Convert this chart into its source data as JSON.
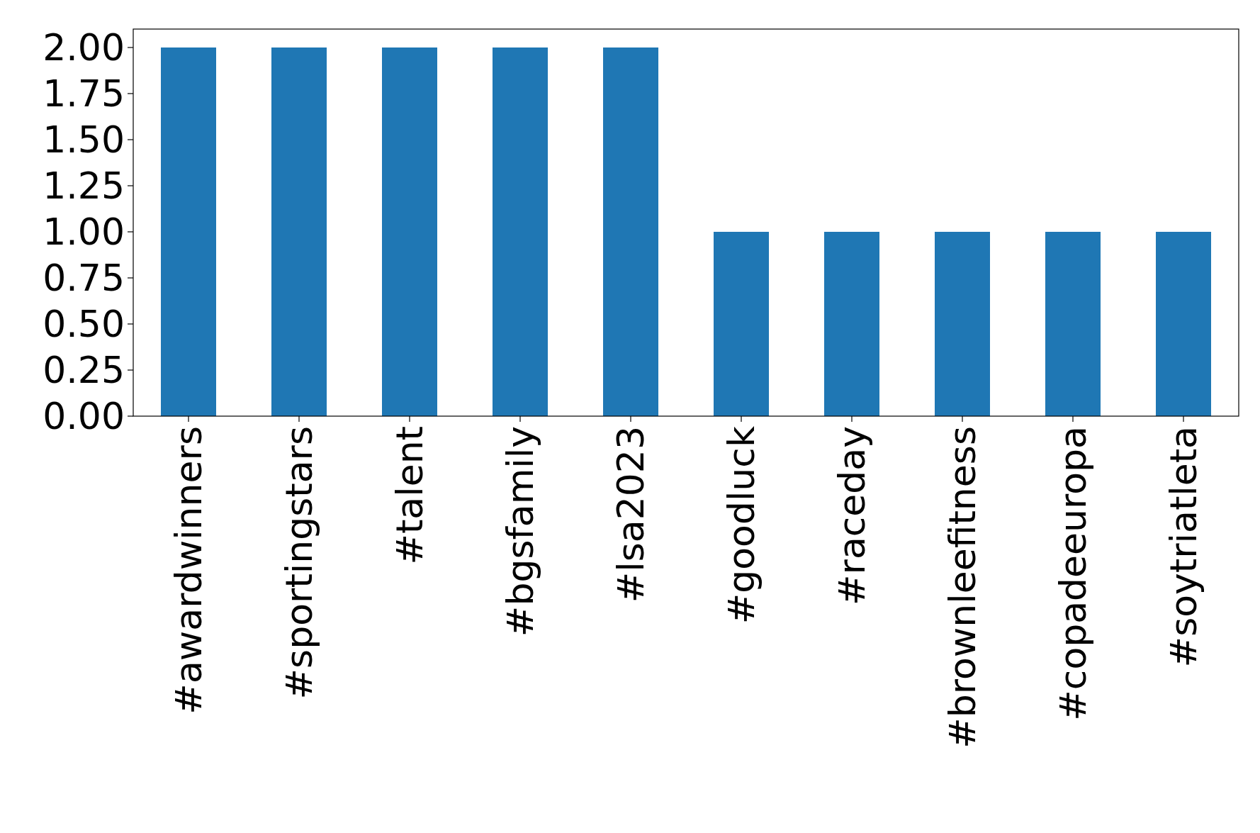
{
  "chart_data": {
    "type": "bar",
    "categories": [
      "#awardwinners",
      "#sportingstars",
      "#talent",
      "#bgsfamily",
      "#lsa2023",
      "#goodluck",
      "#raceday",
      "#brownleefitness",
      "#copadeeuropa",
      "#soytriatleta"
    ],
    "values": [
      2,
      2,
      2,
      2,
      2,
      1,
      1,
      1,
      1,
      1
    ],
    "color": "#1f77b4",
    "ylim": [
      0,
      2.1
    ],
    "yticks": [
      {
        "value": 0,
        "label": "0.00"
      },
      {
        "value": 0.25,
        "label": "0.25"
      },
      {
        "value": 0.5,
        "label": "0.50"
      },
      {
        "value": 0.75,
        "label": "0.75"
      },
      {
        "value": 1,
        "label": "1.00"
      },
      {
        "value": 1.25,
        "label": "1.25"
      },
      {
        "value": 1.5,
        "label": "1.50"
      },
      {
        "value": 1.75,
        "label": "1.75"
      },
      {
        "value": 2,
        "label": "2.00"
      }
    ],
    "grid": false
  }
}
